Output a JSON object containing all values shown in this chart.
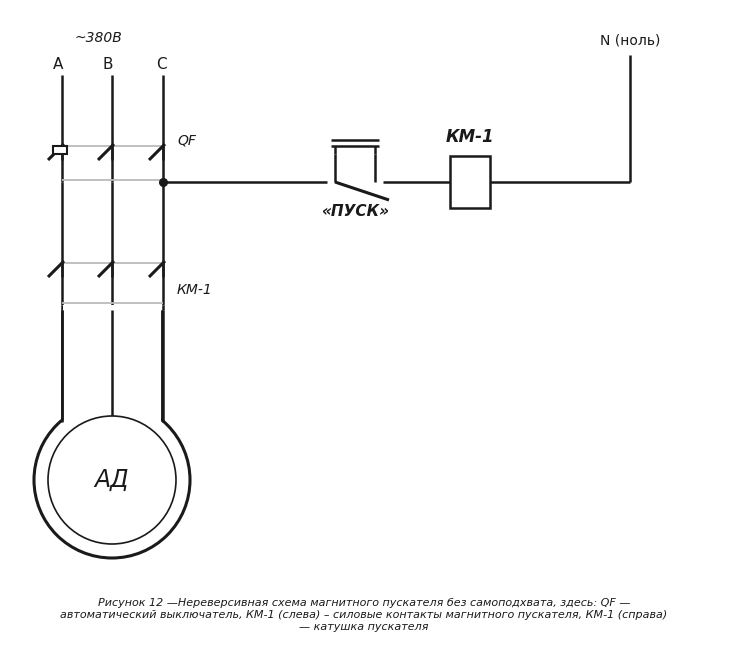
{
  "bg_color": "#ffffff",
  "line_color": "#1a1a1a",
  "gray_color": "#bbbbbb",
  "caption": "Рисунок 12 —Нереверсивная схема магнитного пускателя без самоподхвата, здесь: QF —\nавтоматический выключатель, КМ-1 (слева) – силовые контакты магнитного пускателя, КМ-1 (справа)\n— катушка пускателя",
  "voltage_label": "~380В",
  "phase_A": "А",
  "phase_B": "В",
  "phase_C": "С",
  "neutral_label": "N (ноль)",
  "qf_label": "QF",
  "km1_left_label": "КМ-1",
  "km1_right_label": "КМ-1",
  "pusk_label": "«ПУСК»",
  "motor_label": "АД",
  "lw": 1.8,
  "lw_thick": 2.2
}
